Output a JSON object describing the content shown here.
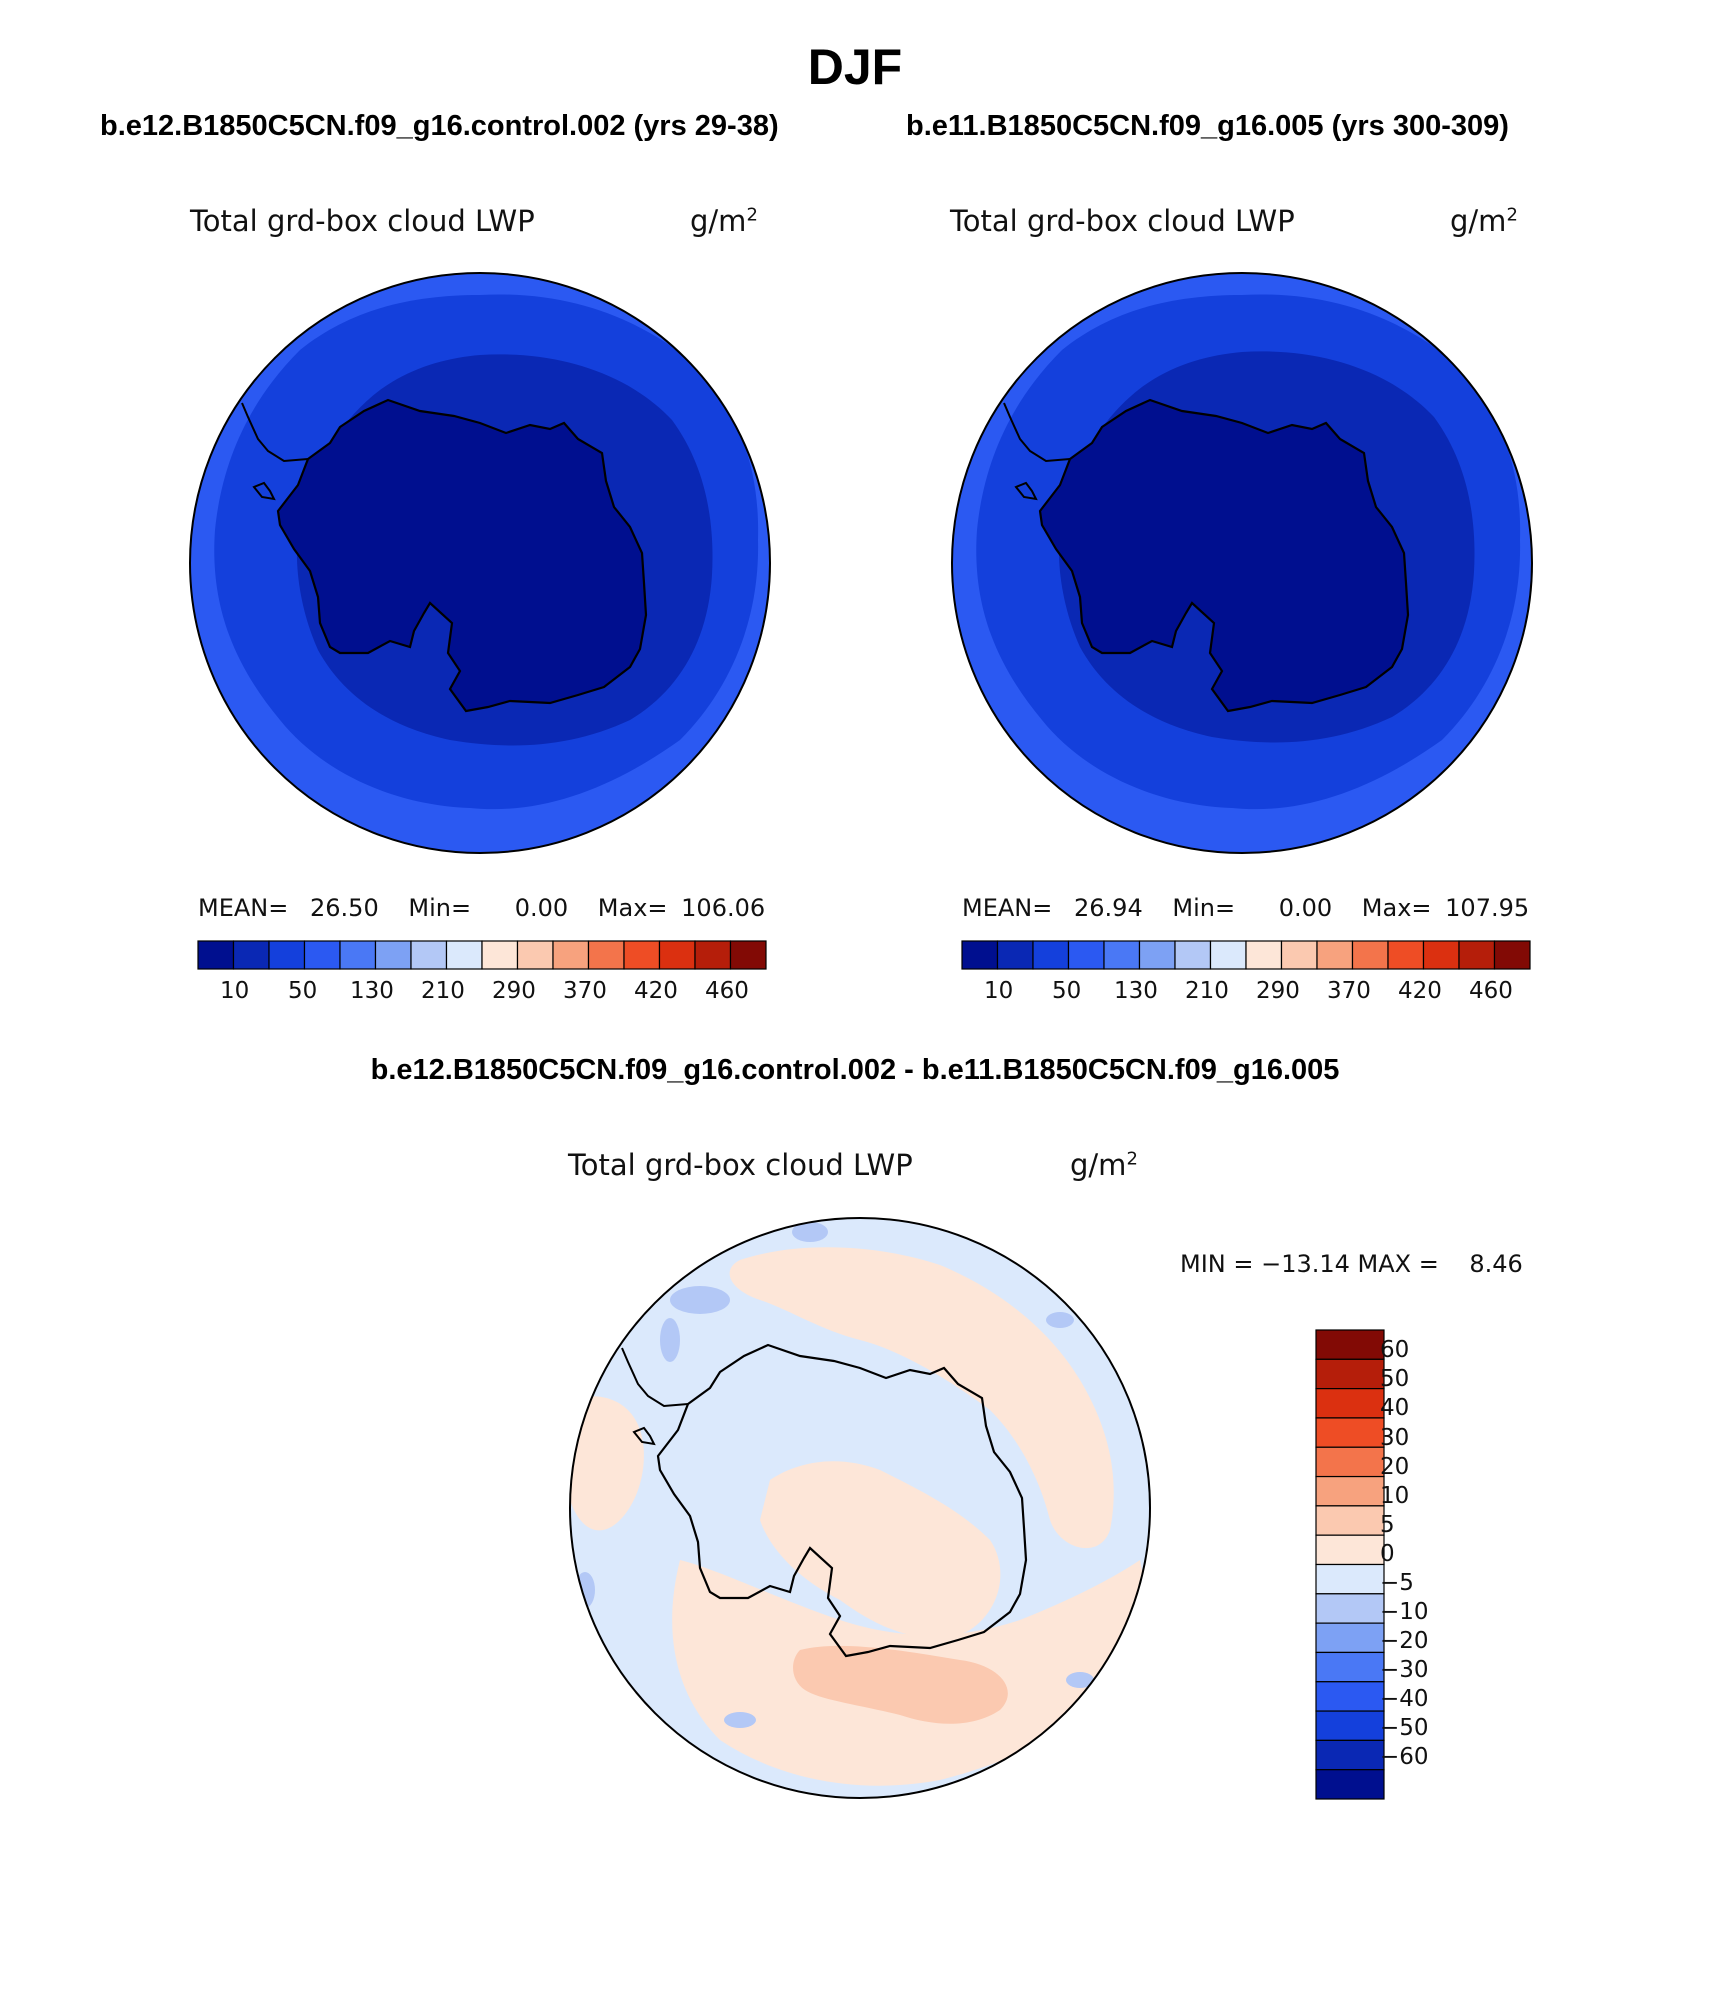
{
  "page_title": "DJF",
  "panels": [
    {
      "case_title": "b.e12.B1850C5CN.f09_g16.control.002 (yrs 29-38)",
      "variable": "Total grd-box cloud LWP",
      "units": "g/m",
      "units_exp": "2",
      "stats": {
        "mean_label": "MEAN=",
        "mean": "26.50",
        "min_label": "Min=",
        "min": "0.00",
        "max_label": "Max=",
        "max": "106.06"
      },
      "colorbar_labels": [
        "10",
        "50",
        "130",
        "210",
        "290",
        "370",
        "420",
        "460"
      ]
    },
    {
      "case_title": "b.e11.B1850C5CN.f09_g16.005 (yrs 300-309)",
      "variable": "Total grd-box cloud LWP",
      "units": "g/m",
      "units_exp": "2",
      "stats": {
        "mean_label": "MEAN=",
        "mean": "26.94",
        "min_label": "Min=",
        "min": "0.00",
        "max_label": "Max=",
        "max": "107.95"
      },
      "colorbar_labels": [
        "10",
        "50",
        "130",
        "210",
        "290",
        "370",
        "420",
        "460"
      ]
    }
  ],
  "diff": {
    "title": "b.e12.B1850C5CN.f09_g16.control.002 - b.e11.B1850C5CN.f09_g16.005",
    "variable": "Total grd-box cloud LWP",
    "units": "g/m",
    "units_exp": "2",
    "minmax": "MIN = −13.14 MAX =    8.46",
    "colorbar_labels": [
      "60",
      "50",
      "40",
      "30",
      "20",
      "10",
      "5",
      "0",
      "−5",
      "−10",
      "−20",
      "−30",
      "−40",
      "−50",
      "−60"
    ]
  },
  "colors": {
    "abs_scale": [
      "#000f8f",
      "#0a28b4",
      "#1440dc",
      "#2b59f2",
      "#4a78f5",
      "#7da1f4",
      "#b3c8f6",
      "#dbe9fc",
      "#fde6d8",
      "#fbc9b0",
      "#f7a27e",
      "#f3744b",
      "#ee4d25",
      "#db3010",
      "#b51e0a",
      "#820a05"
    ],
    "diff_scale": [
      "#820a05",
      "#b51e0a",
      "#db3010",
      "#ee4d25",
      "#f3744b",
      "#f7a27e",
      "#fbc9b0",
      "#fde6d8",
      "#dbe9fc",
      "#b3c8f6",
      "#7da1f4",
      "#4a78f5",
      "#2b59f2",
      "#1440dc",
      "#0a28b4",
      "#000f8f"
    ]
  }
}
